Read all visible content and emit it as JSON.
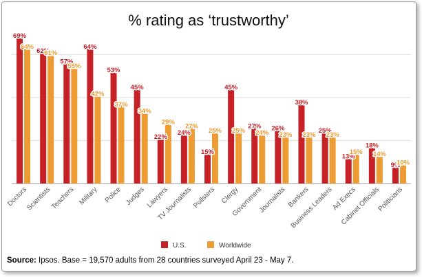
{
  "chart_data": {
    "type": "bar",
    "title": "% rating as ‘trustworthy’",
    "categories": [
      "Doctors",
      "Scientists",
      "Teachers",
      "Military",
      "Police",
      "Judges",
      "Lawyers",
      "TV Journalists",
      "Pollsters",
      "Clergy",
      "Government",
      "Journalists",
      "Bankers",
      "Business Leaders",
      "Ad Execs",
      "Cabinet Officials",
      "Politicians"
    ],
    "series": [
      {
        "name": "U.S.",
        "color": "#c62127",
        "values": [
          69,
          62,
          57,
          64,
          53,
          45,
          22,
          24,
          15,
          45,
          27,
          26,
          38,
          25,
          13,
          18,
          9
        ]
      },
      {
        "name": "Worldwide",
        "color": "#ec9c33",
        "values": [
          64,
          61,
          55,
          42,
          37,
          34,
          29,
          27,
          25,
          25,
          24,
          23,
          23,
          23,
          15,
          14,
          10
        ]
      }
    ],
    "data_labels": [
      [
        "69%",
        "62%",
        "57%",
        "64%",
        "53%",
        "45%",
        "22%",
        "24%",
        "15%",
        "45%",
        "27%",
        "26%",
        "38%",
        "25%",
        "13%",
        "18%",
        "9%"
      ],
      [
        "64%",
        "61%",
        "55%",
        "42%",
        "37%",
        "34%",
        "29%",
        "27%",
        "25%",
        "25%",
        "24%",
        "23%",
        "23%",
        "23%",
        "15%",
        "14%",
        "10%"
      ]
    ],
    "ylim": [
      0,
      70
    ],
    "gridlines": [
      0,
      20,
      40,
      60
    ],
    "legend_placement": "bottom-center",
    "grid": true
  },
  "source": {
    "label": "Source:",
    "text": " Ipsos. Base = 19,570 adults from 28 countries surveyed April 23 - May 7."
  }
}
